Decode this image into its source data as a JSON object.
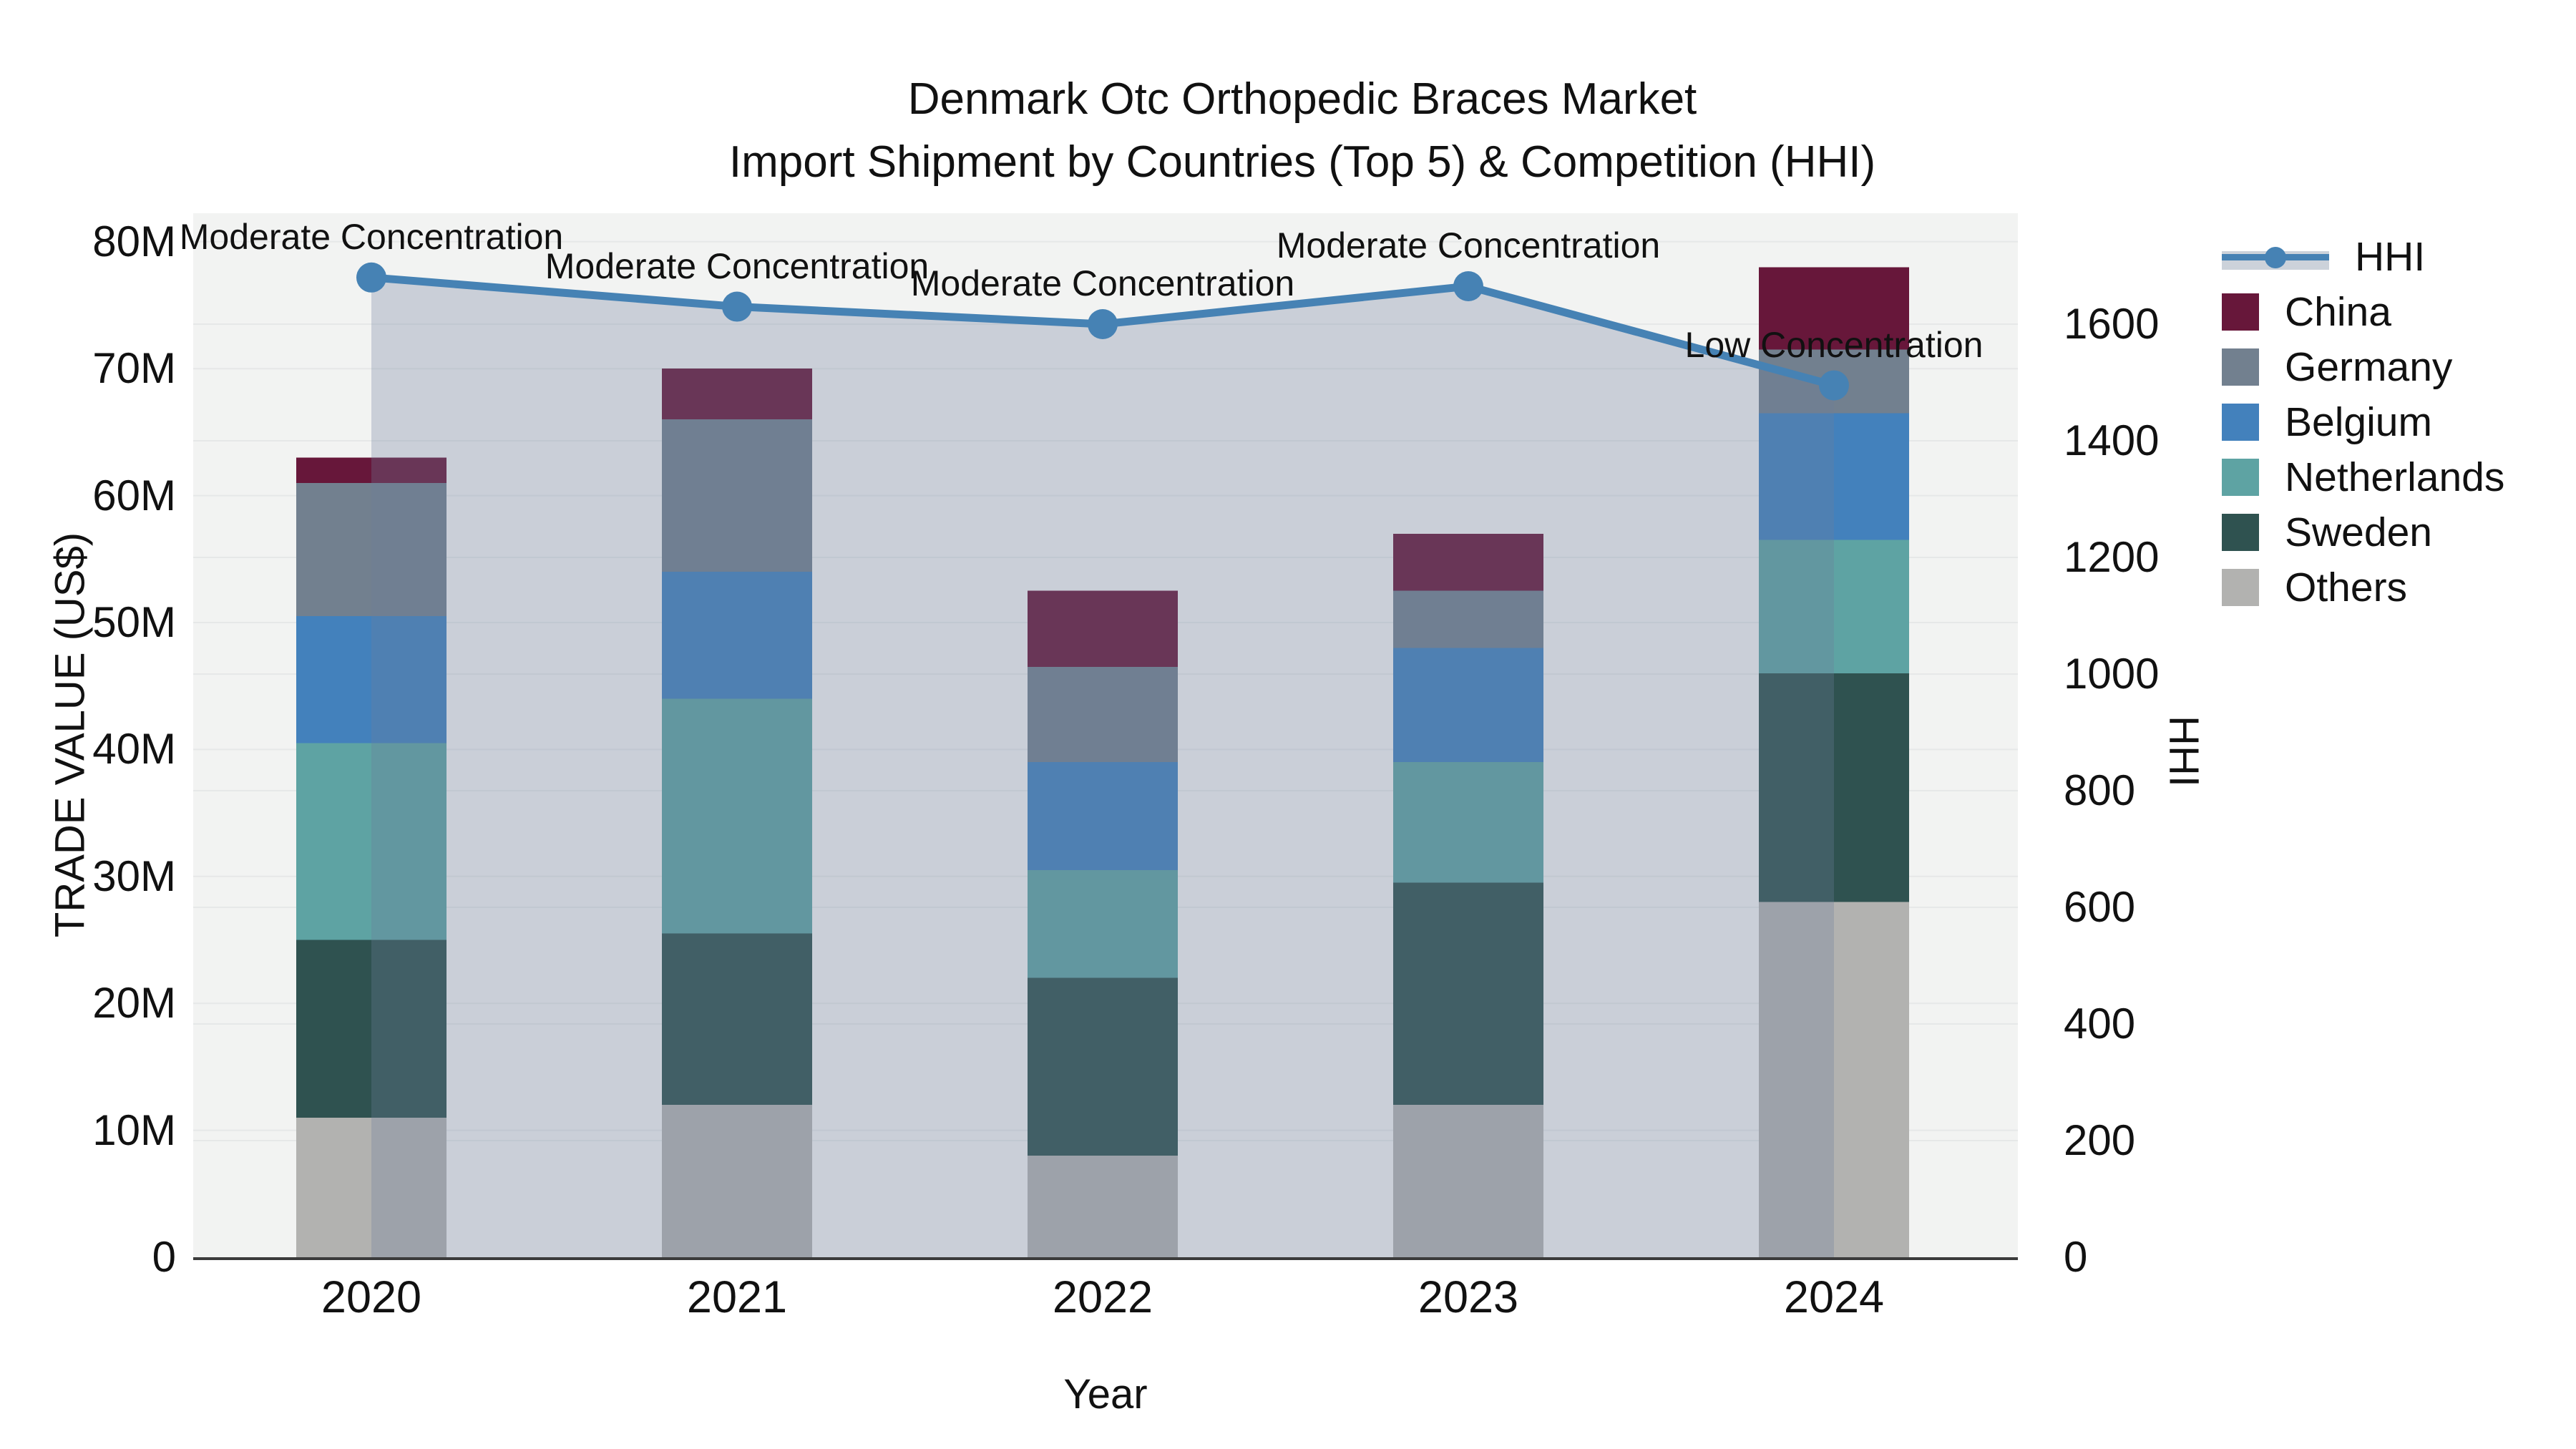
{
  "title": {
    "line1": "Denmark Otc Orthopedic Braces Market",
    "line2": "Import Shipment by Countries (Top 5) & Competition (HHI)"
  },
  "legend": {
    "items": [
      {
        "label": "HHI",
        "type": "line",
        "color": "#4682b4"
      },
      {
        "label": "China",
        "type": "swatch",
        "color": "#67173a"
      },
      {
        "label": "Germany",
        "type": "swatch",
        "color": "#72808f"
      },
      {
        "label": "Belgium",
        "type": "swatch",
        "color": "#4381bc"
      },
      {
        "label": "Netherlands",
        "type": "swatch",
        "color": "#5ea3a3"
      },
      {
        "label": "Sweden",
        "type": "swatch",
        "color": "#2f5250"
      },
      {
        "label": "Others",
        "type": "swatch",
        "color": "#b2b2b0"
      }
    ]
  },
  "chart_data": {
    "type": "combo-stacked-bar-line",
    "title": "Denmark Otc Orthopedic Braces Market — Import Shipment by Countries (Top 5) & Competition (HHI)",
    "categories": [
      "2020",
      "2021",
      "2022",
      "2023",
      "2024"
    ],
    "unit_bars": "trade value, US$ millions",
    "series": [
      {
        "name": "Others",
        "color": "#b2b2b0",
        "values": [
          11,
          12,
          8,
          12,
          28
        ]
      },
      {
        "name": "Sweden",
        "color": "#2f5250",
        "values": [
          14,
          13.5,
          14,
          17.5,
          18
        ]
      },
      {
        "name": "Netherlands",
        "color": "#5ea3a3",
        "values": [
          15.5,
          18.5,
          8.5,
          9.5,
          10.5
        ]
      },
      {
        "name": "Belgium",
        "color": "#4381bc",
        "values": [
          10,
          10,
          8.5,
          9,
          10
        ]
      },
      {
        "name": "Germany",
        "color": "#72808f",
        "values": [
          10.5,
          12,
          7.5,
          4.5,
          5
        ]
      },
      {
        "name": "China",
        "color": "#67173a",
        "values": [
          2,
          4,
          6,
          4.5,
          6.5
        ]
      }
    ],
    "bar_totals": [
      63,
      70,
      52.5,
      57,
      78
    ],
    "line": {
      "name": "HHI",
      "axis": "right",
      "color": "#4682b4",
      "area_fill": "rgba(110,127,157,0.30)",
      "values": [
        1680,
        1630,
        1600,
        1665,
        1495
      ]
    },
    "annotations": [
      {
        "x": "2020",
        "text": "Moderate Concentration"
      },
      {
        "x": "2021",
        "text": "Moderate Concentration"
      },
      {
        "x": "2022",
        "text": "Moderate Concentration"
      },
      {
        "x": "2023",
        "text": "Moderate Concentration"
      },
      {
        "x": "2024",
        "text": "Low Concentration"
      }
    ],
    "y_left": {
      "label": "TRADE VALUE (US$)",
      "ticks": [
        0,
        10,
        20,
        30,
        40,
        50,
        60,
        70,
        80
      ],
      "tick_labels": [
        "0",
        "10M",
        "20M",
        "30M",
        "40M",
        "50M",
        "60M",
        "70M",
        "80M"
      ],
      "max": 82.2
    },
    "y_right": {
      "label": "HHI",
      "ticks": [
        0,
        200,
        400,
        600,
        800,
        1000,
        1200,
        1400,
        1600
      ],
      "tick_labels": [
        "0",
        "200",
        "400",
        "600",
        "800",
        "1000",
        "1200",
        "1400",
        "1600"
      ],
      "max": 1790
    },
    "x": {
      "label": "Year"
    },
    "layout_hints": {
      "plot_background": "#f2f3f2",
      "grid_color": "#e6e8e8",
      "grid": "on",
      "legend_position": "right",
      "bar_mode": "stack"
    }
  }
}
